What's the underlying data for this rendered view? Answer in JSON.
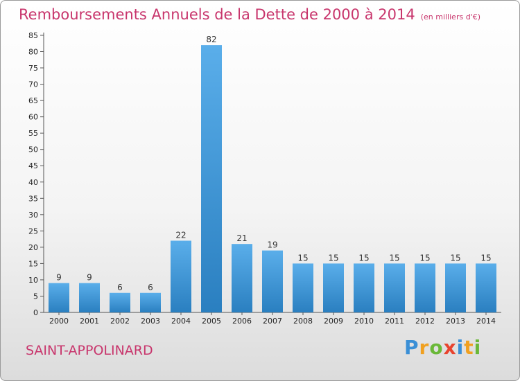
{
  "header": {
    "title": "Remboursements Annuels de la Dette de 2000 à 2014",
    "unit": "(en milliers d'€)"
  },
  "footer": {
    "commune": "SAINT-APPOLINARD",
    "logo_letters": [
      {
        "char": "P",
        "color": "#3a8fd6"
      },
      {
        "char": "r",
        "color": "#f0a020"
      },
      {
        "char": "o",
        "color": "#6ab838"
      },
      {
        "char": "x",
        "color": "#e8432e"
      },
      {
        "char": "i",
        "color": "#3a8fd6"
      },
      {
        "char": "t",
        "color": "#f0a020"
      },
      {
        "char": "i",
        "color": "#6ab838"
      }
    ]
  },
  "colors": {
    "bar_light": "#5aaeea",
    "bar_dark": "#2a7fc0",
    "title": "#c8356c"
  },
  "chart_data": {
    "type": "bar",
    "title": "Remboursements Annuels de la Dette de 2000 à 2014",
    "categories": [
      "2000",
      "2001",
      "2002",
      "2003",
      "2004",
      "2005",
      "2006",
      "2007",
      "2008",
      "2009",
      "2010",
      "2011",
      "2012",
      "2013",
      "2014"
    ],
    "values": [
      9,
      9,
      6,
      6,
      22,
      82,
      21,
      19,
      15,
      15,
      15,
      15,
      15,
      15,
      15
    ],
    "ylim": [
      0,
      85
    ],
    "yticks": [
      0,
      5,
      10,
      15,
      20,
      25,
      30,
      35,
      40,
      45,
      50,
      55,
      60,
      65,
      70,
      75,
      80,
      85
    ],
    "grid": false,
    "xlabel": "",
    "ylabel": ""
  }
}
